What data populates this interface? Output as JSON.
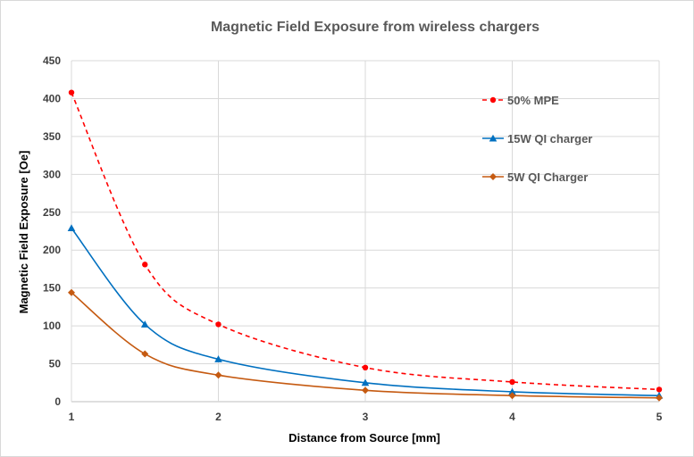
{
  "chart_data": {
    "type": "line",
    "title": "Magnetic Field Exposure from wireless chargers",
    "xlabel": "Distance from Source [mm]",
    "ylabel": "Magnetic Field Exposure [Oe]",
    "xlim": [
      1,
      5
    ],
    "ylim": [
      0,
      450
    ],
    "x_ticks": [
      "1",
      "2",
      "3",
      "4",
      "5"
    ],
    "y_ticks": [
      "0",
      "50",
      "100",
      "150",
      "200",
      "250",
      "300",
      "350",
      "400",
      "450"
    ],
    "grid": true,
    "legend_position": "top-right",
    "series": [
      {
        "name": "50% MPE",
        "color": "#ff0000",
        "line_style": "dashed",
        "marker": "circle",
        "points": [
          [
            1,
            408
          ],
          [
            1.5,
            181
          ],
          [
            2,
            102
          ],
          [
            3,
            45
          ],
          [
            4,
            26
          ],
          [
            5,
            16
          ]
        ]
      },
      {
        "name": "15W QI charger",
        "color": "#0070c0",
        "line_style": "solid",
        "marker": "triangle",
        "points": [
          [
            1,
            229
          ],
          [
            1.5,
            102
          ],
          [
            2,
            56
          ],
          [
            3,
            25
          ],
          [
            4,
            13
          ],
          [
            5,
            8
          ]
        ]
      },
      {
        "name": "5W QI Charger",
        "color": "#c55a11",
        "line_style": "solid",
        "marker": "diamond",
        "points": [
          [
            1,
            144
          ],
          [
            1.5,
            63
          ],
          [
            2,
            35
          ],
          [
            3,
            15
          ],
          [
            4,
            8
          ],
          [
            5,
            5
          ]
        ]
      }
    ]
  }
}
